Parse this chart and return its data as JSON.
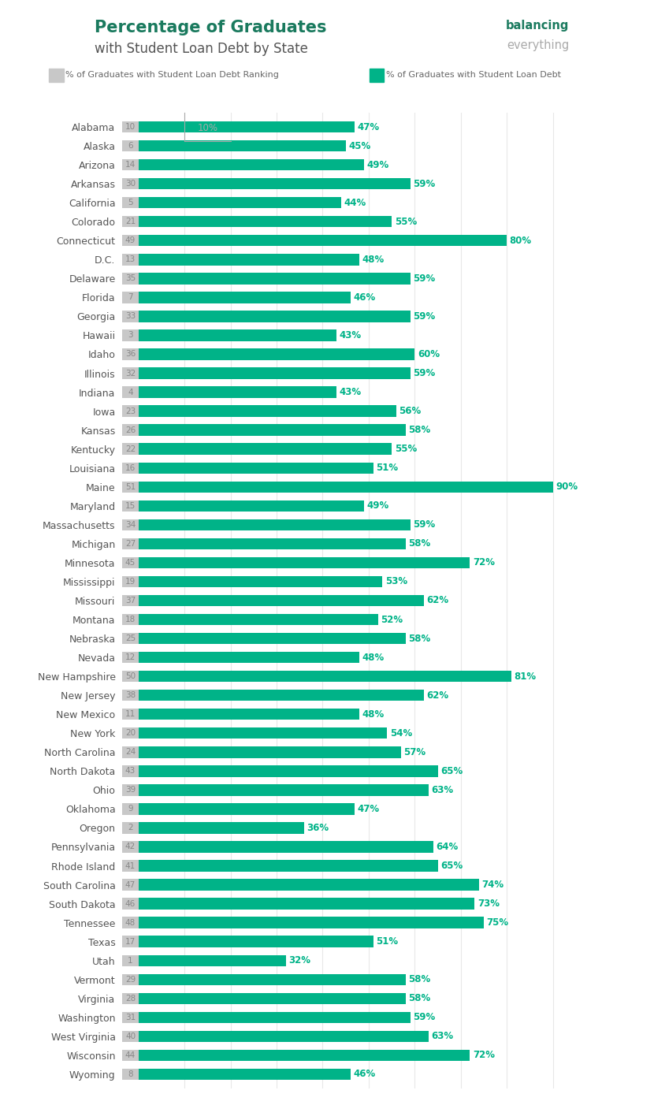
{
  "states": [
    "Alabama",
    "Alaska",
    "Arizona",
    "Arkansas",
    "California",
    "Colorado",
    "Connecticut",
    "D.C.",
    "Delaware",
    "Florida",
    "Georgia",
    "Hawaii",
    "Idaho",
    "Illinois",
    "Indiana",
    "Iowa",
    "Kansas",
    "Kentucky",
    "Louisiana",
    "Maine",
    "Maryland",
    "Massachusetts",
    "Michigan",
    "Minnesota",
    "Mississippi",
    "Missouri",
    "Montana",
    "Nebraska",
    "Nevada",
    "New Hampshire",
    "New Jersey",
    "New Mexico",
    "New York",
    "North Carolina",
    "North Dakota",
    "Ohio",
    "Oklahoma",
    "Oregon",
    "Pennsylvania",
    "Rhode Island",
    "South Carolina",
    "South Dakota",
    "Tennessee",
    "Texas",
    "Utah",
    "Vermont",
    "Virginia",
    "Washington",
    "West Virginia",
    "Wisconsin",
    "Wyoming"
  ],
  "rankings": [
    10,
    6,
    14,
    30,
    5,
    21,
    49,
    13,
    35,
    7,
    33,
    3,
    36,
    32,
    4,
    23,
    26,
    22,
    16,
    51,
    15,
    34,
    27,
    45,
    19,
    37,
    18,
    25,
    12,
    50,
    38,
    11,
    20,
    24,
    43,
    39,
    9,
    2,
    42,
    41,
    47,
    46,
    48,
    17,
    1,
    29,
    28,
    31,
    40,
    44,
    8
  ],
  "percentages": [
    47,
    45,
    49,
    59,
    44,
    55,
    80,
    48,
    59,
    46,
    59,
    43,
    60,
    59,
    43,
    56,
    58,
    55,
    51,
    90,
    49,
    59,
    58,
    72,
    53,
    62,
    52,
    58,
    48,
    81,
    62,
    48,
    54,
    57,
    65,
    63,
    47,
    36,
    64,
    65,
    74,
    73,
    75,
    51,
    32,
    58,
    58,
    59,
    63,
    72,
    46
  ],
  "bar_color": "#00b388",
  "ranking_bar_color": "#c8c8c8",
  "ranking_text_color": "#888888",
  "pct_label_color": "#00b388",
  "state_label_color": "#555555",
  "title_color": "#1a7a5e",
  "subtitle_color": "#555555",
  "bg_color": "#ffffff",
  "grid_color": "#e8e8e8",
  "legend_text_color": "#666666",
  "annotation_color": "#aaaaaa",
  "title_line1": "Percentage of Graduates",
  "title_line2": "with Student Loan Debt by State",
  "brand_line1": "balancing",
  "brand_line2": "everything"
}
